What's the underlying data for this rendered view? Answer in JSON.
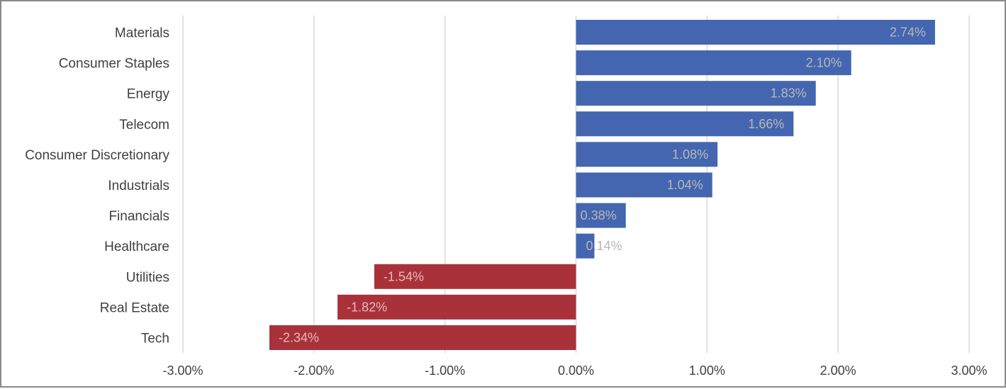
{
  "chart_data": {
    "type": "bar",
    "orientation": "horizontal",
    "categories": [
      "Materials",
      "Consumer Staples",
      "Energy",
      "Telecom",
      "Consumer Discretionary",
      "Industrials",
      "Financials",
      "Healthcare",
      "Utilities",
      "Real Estate",
      "Tech"
    ],
    "values": [
      2.74,
      2.1,
      1.83,
      1.66,
      1.08,
      1.04,
      0.38,
      0.14,
      -1.54,
      -1.82,
      -2.34
    ],
    "value_labels": [
      "2.74%",
      "2.10%",
      "1.83%",
      "1.66%",
      "1.08%",
      "1.04%",
      "0.38%",
      "0.14%",
      "-1.54%",
      "-1.82%",
      "-2.34%"
    ],
    "xlim": [
      -3.0,
      3.0
    ],
    "x_ticks": [
      -3,
      -2,
      -1,
      0,
      1,
      2,
      3
    ],
    "x_tick_labels": [
      "-3.00%",
      "-2.00%",
      "-1.00%",
      "0.00%",
      "1.00%",
      "2.00%",
      "3.00%"
    ],
    "title": "",
    "xlabel": "",
    "ylabel": "",
    "grid": "vertical",
    "legend": "none",
    "colors": {
      "positive": "#4466b0",
      "negative": "#a9323a",
      "gridline": "#d9d9d9",
      "value_label": "#b7b7b7",
      "axis_text": "#404040"
    }
  }
}
